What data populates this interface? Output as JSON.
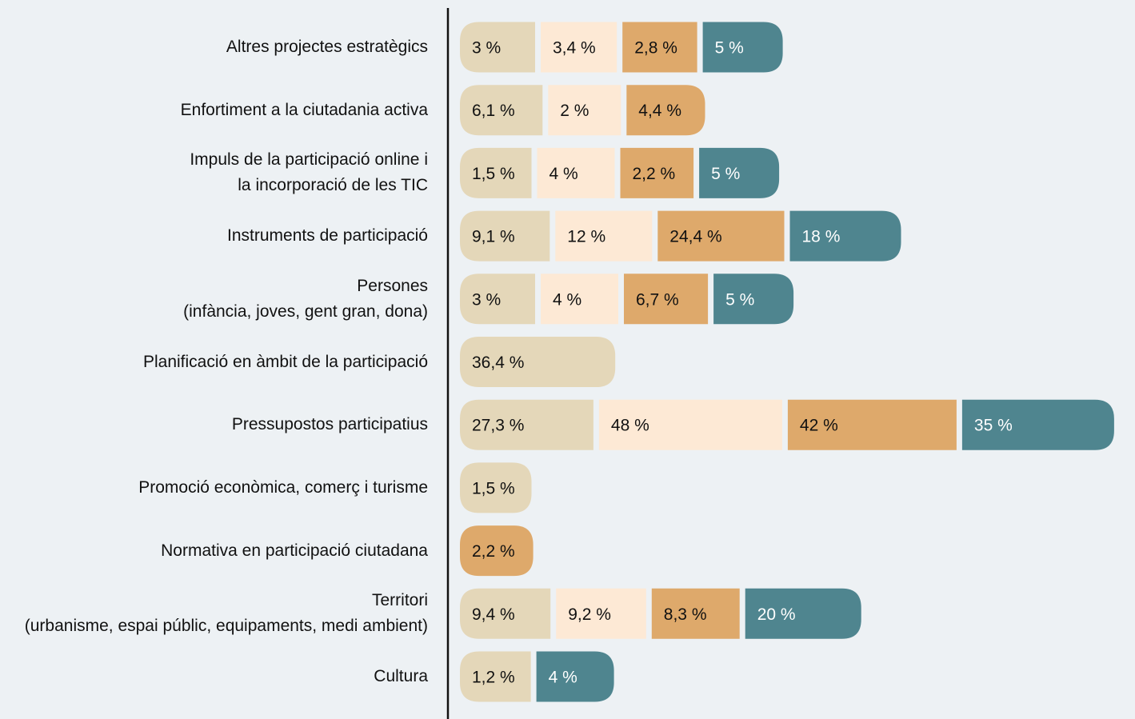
{
  "chart_data": {
    "type": "bar",
    "categories": [
      "Altres projectes estratègics",
      "Enfortiment a la ciutadania activa",
      "Impuls de la participació online i\nla incorporació de les TIC",
      "Instruments de participació",
      "Persones\n(infància, joves, gent gran, dona)",
      "Planificació en àmbit de la participació",
      "Pressupostos participatius",
      "Promoció econòmica, comerç i turisme",
      "Normativa en participació ciutadana",
      "Territori\n(urbanisme, espai públic, equipaments, medi ambient)",
      "Cultura"
    ],
    "series": [
      {
        "color": "#e4d7b9",
        "values": [
          3,
          6.1,
          1.5,
          9.1,
          3,
          36.4,
          27.3,
          1.5,
          null,
          9.4,
          1.2
        ],
        "value_labels": [
          "3 %",
          "6,1 %",
          "1,5 %",
          "9,1 %",
          "3 %",
          "36,4 %",
          "27,3 %",
          "1,5 %",
          null,
          "9,4 %",
          "1,2 %"
        ]
      },
      {
        "color": "#fde9d5",
        "values": [
          3.4,
          2,
          4,
          12,
          4,
          null,
          48,
          null,
          null,
          9.2,
          null
        ],
        "value_labels": [
          "3,4 %",
          "2 %",
          "4 %",
          "12 %",
          "4 %",
          null,
          "48 %",
          null,
          null,
          "9,2 %",
          null
        ]
      },
      {
        "color": "#dea96b",
        "values": [
          2.8,
          4.4,
          2.2,
          24.4,
          6.7,
          null,
          42,
          null,
          2.2,
          8.3,
          null
        ],
        "value_labels": [
          "2,8 %",
          "4,4 %",
          "2,2 %",
          "24,4 %",
          "6,7 %",
          null,
          "42 %",
          null,
          "2,2 %",
          "8,3 %",
          null
        ]
      },
      {
        "color": "#4f858f",
        "values": [
          5,
          null,
          5,
          18,
          5,
          null,
          35,
          null,
          null,
          20,
          4
        ],
        "value_labels": [
          "5 %",
          null,
          "5 %",
          "18 %",
          "5 %",
          null,
          "35 %",
          null,
          null,
          "20 %",
          "4 %"
        ]
      }
    ]
  }
}
